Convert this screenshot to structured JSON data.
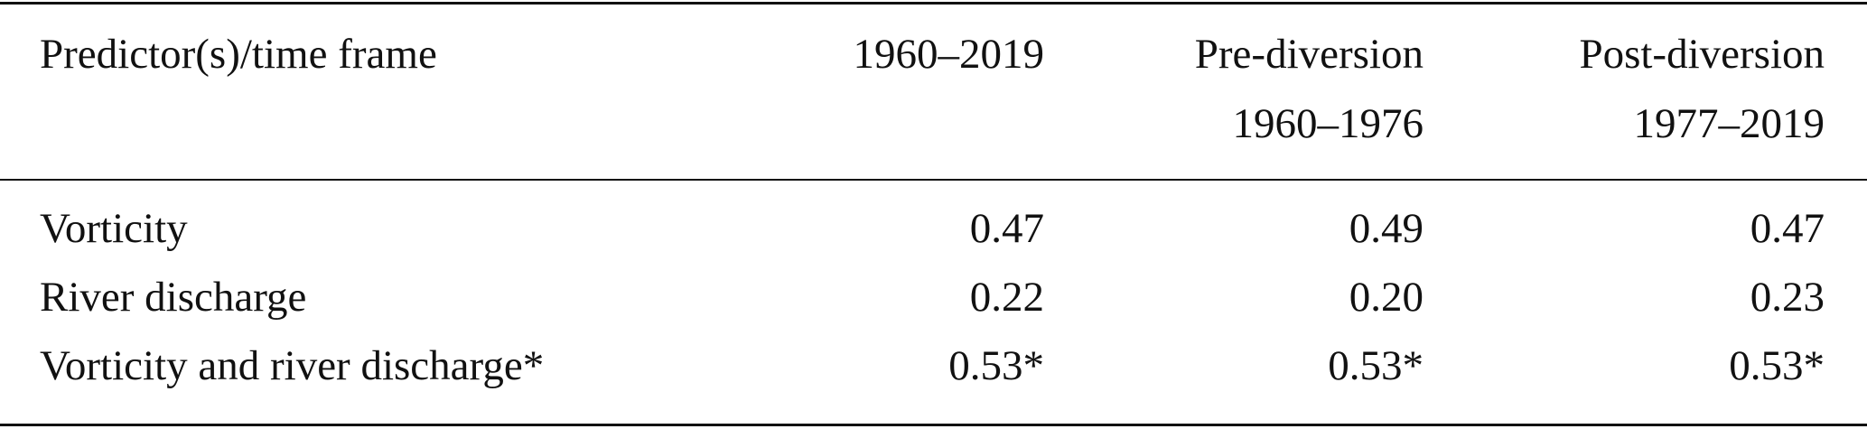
{
  "table": {
    "header": [
      [
        "Predictor(s)/time frame"
      ],
      [
        "1960–2019"
      ],
      [
        "Pre-diversion",
        "1960–1976"
      ],
      [
        "Post-diversion",
        "1977–2019"
      ]
    ],
    "rows": [
      [
        "Vorticity",
        "0.47",
        "0.49",
        "0.47"
      ],
      [
        "River discharge",
        "0.22",
        "0.20",
        "0.23"
      ],
      [
        "Vorticity and river discharge*",
        "0.53*",
        "0.53*",
        "0.53*"
      ]
    ]
  }
}
